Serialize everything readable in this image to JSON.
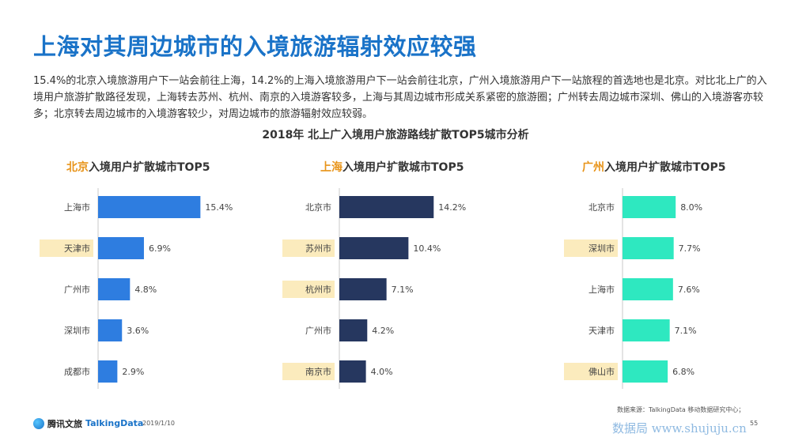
{
  "title": "上海对其周边城市的入境旅游辐射效应较强",
  "intro": "15.4%的北京入境旅游用户下一站会前往上海，14.2%的上海入境旅游用户下一站会前往北京，广州入境旅游用户下一站旅程的首选地也是北京。对比北上广的入境用户旅游扩散路径发现，上海转去苏州、杭州、南京的入境游客较多，上海与其周边城市形成关系紧密的旅游圈；广州转去周边城市深圳、佛山的入境游客亦较多；北京转去周边城市的入境游客较少，对周边城市的旅游辐射效应较弱。",
  "subtitle": "2018年 北上广入境用户旅游路线扩散TOP5城市分析",
  "chart_data": [
    {
      "type": "bar",
      "title_city": "北京",
      "title_rest": "入境用户扩散城市TOP5",
      "categories": [
        "上海市",
        "天津市",
        "广州市",
        "深圳市",
        "成都市"
      ],
      "values": [
        15.4,
        6.9,
        4.8,
        3.6,
        2.9
      ],
      "value_labels": [
        "15.4%",
        "6.9%",
        "4.8%",
        "3.6%",
        "2.9%"
      ],
      "highlighted": [
        false,
        true,
        false,
        false,
        false
      ],
      "color": "#2e7de0"
    },
    {
      "type": "bar",
      "title_city": "上海",
      "title_rest": "入境用户扩散城市TOP5",
      "categories": [
        "北京市",
        "苏州市",
        "杭州市",
        "广州市",
        "南京市"
      ],
      "values": [
        14.2,
        10.4,
        7.1,
        4.2,
        4.0
      ],
      "value_labels": [
        "14.2%",
        "10.4%",
        "7.1%",
        "4.2%",
        "4.0%"
      ],
      "highlighted": [
        false,
        true,
        true,
        false,
        true
      ],
      "color": "#26375f"
    },
    {
      "type": "bar",
      "title_city": "广州",
      "title_rest": "入境用户扩散城市TOP5",
      "categories": [
        "北京市",
        "深圳市",
        "上海市",
        "天津市",
        "佛山市"
      ],
      "values": [
        8.0,
        7.7,
        7.6,
        7.1,
        6.8
      ],
      "value_labels": [
        "8.0%",
        "7.7%",
        "7.6%",
        "7.1%",
        "6.8%"
      ],
      "highlighted": [
        false,
        true,
        false,
        false,
        true
      ],
      "color": "#2ee8c0"
    }
  ],
  "highlight_color": "#fbebbd",
  "footer": {
    "source": "数据来源：TalkingData 移动数据研究中心；",
    "brand1": "腾讯文旅",
    "brand2": "TalkingData",
    "date": "2019/1/10",
    "page": "55",
    "watermark": "数据局 www.shujuju.cn"
  }
}
